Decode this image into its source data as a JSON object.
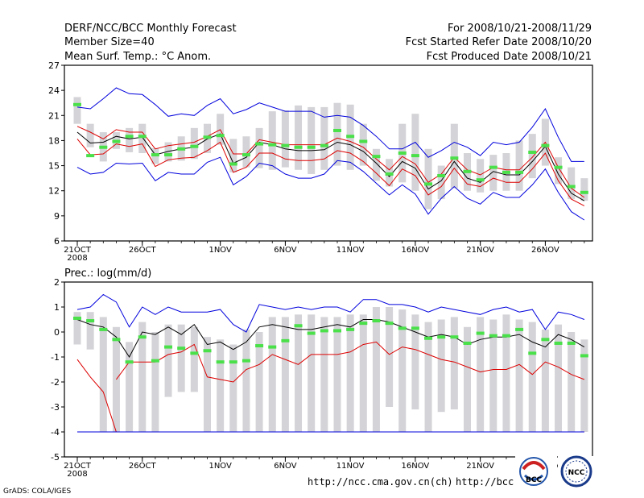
{
  "header": {
    "left_line1": "DERF/NCC/BCC Monthly Forecast",
    "left_line2": "Member Size=40",
    "left_line3": "Mean Surf. Temp.: °C Anom.",
    "right_line1": "For 2008/10/21-2008/11/29",
    "right_line2": "Fcst Started Refer Date 2008/10/20",
    "right_line3": "Fcst Produced Date 2008/10/21"
  },
  "footer": {
    "credit": "GrADS: COLA/IGES",
    "url1": "http://ncc.cma.gov.cn(ch)",
    "url2": "http://bcc.c",
    "logo_text_bcc": "BCC",
    "logo_text_ncc": "NCC"
  },
  "colors": {
    "max_line": "#0000dd",
    "min_line": "#dd0000",
    "mean_line": "#000000",
    "box": "#d4d4d8",
    "marker": "#4ae04a"
  },
  "chart_data": [
    {
      "type": "line",
      "title": "Mean Surf. Temp.: °C Anom.",
      "xlabel": "",
      "ylabel": "",
      "ylim": [
        6,
        27
      ],
      "yticks": [
        "6",
        "9",
        "12",
        "15",
        "18",
        "21",
        "24",
        "27"
      ],
      "xticks": [
        {
          "label": "21OCT",
          "day": 0
        },
        {
          "label": "26OCT",
          "day": 5
        },
        {
          "label": "1NOV",
          "day": 11
        },
        {
          "label": "6NOV",
          "day": 16
        },
        {
          "label": "11NOV",
          "day": 21
        },
        {
          "label": "16NOV",
          "day": 26
        },
        {
          "label": "21NOV",
          "day": 31
        },
        {
          "label": "26NOV",
          "day": 36
        }
      ],
      "year_label": "2008",
      "series": [
        {
          "name": "max",
          "color": "blue",
          "values": [
            22.0,
            21.8,
            23.0,
            24.3,
            23.6,
            23.5,
            22.3,
            20.9,
            21.2,
            21.0,
            22.2,
            23.0,
            21.2,
            21.7,
            22.5,
            22.0,
            21.5,
            21.5,
            21.5,
            20.8,
            21.0,
            20.8,
            19.8,
            18.5,
            17.0,
            17.0,
            17.8,
            16.0,
            16.8,
            17.8,
            17.2,
            16.2,
            17.8,
            17.5,
            17.8,
            19.6,
            21.8,
            18.4,
            15.5,
            15.5
          ]
        },
        {
          "name": "upper",
          "color": "red",
          "values": [
            19.7,
            19.0,
            18.2,
            19.3,
            19.0,
            19.0,
            17.0,
            17.4,
            17.6,
            17.8,
            18.5,
            19.3,
            16.4,
            16.4,
            18.1,
            17.8,
            17.5,
            17.5,
            17.5,
            17.5,
            18.3,
            17.9,
            17.2,
            15.8,
            14.5,
            16.1,
            15.2,
            13.0,
            14.0,
            16.0,
            14.5,
            13.9,
            14.8,
            14.5,
            14.5,
            16.0,
            17.8,
            14.8,
            12.3,
            11.2
          ]
        },
        {
          "name": "mean",
          "color": "black",
          "values": [
            19.0,
            17.7,
            17.8,
            18.5,
            18.2,
            18.4,
            16.3,
            16.7,
            17.0,
            17.2,
            18.2,
            18.8,
            15.3,
            16.0,
            17.8,
            17.5,
            17.0,
            16.8,
            16.8,
            16.9,
            17.8,
            17.5,
            16.7,
            15.3,
            13.7,
            15.5,
            14.7,
            12.2,
            13.2,
            15.5,
            13.5,
            13.0,
            14.3,
            13.9,
            13.9,
            15.5,
            17.3,
            14.0,
            11.7,
            10.8
          ]
        },
        {
          "name": "lower",
          "color": "red",
          "values": [
            18.2,
            16.3,
            16.4,
            17.6,
            17.3,
            17.6,
            14.9,
            15.7,
            15.9,
            16.0,
            16.8,
            17.8,
            14.2,
            14.8,
            16.5,
            16.5,
            15.8,
            15.6,
            15.6,
            15.8,
            16.8,
            16.5,
            15.5,
            14.1,
            12.6,
            14.6,
            13.8,
            11.5,
            12.5,
            14.7,
            12.8,
            12.5,
            13.5,
            13.0,
            13.0,
            14.6,
            16.5,
            13.2,
            11.0,
            10.2
          ]
        },
        {
          "name": "min",
          "color": "blue",
          "values": [
            14.8,
            14.0,
            14.2,
            15.3,
            15.2,
            15.3,
            13.2,
            14.2,
            14.0,
            14.0,
            15.4,
            16.0,
            12.7,
            13.7,
            15.3,
            15.0,
            14.0,
            13.5,
            13.5,
            14.0,
            15.6,
            15.4,
            14.3,
            12.9,
            11.5,
            12.7,
            11.6,
            9.2,
            11.1,
            12.5,
            11.1,
            10.4,
            11.8,
            11.2,
            11.2,
            12.7,
            14.6,
            11.8,
            9.5,
            8.5
          ]
        }
      ],
      "boxes": [
        [
          20.0,
          23.2
        ],
        [
          17.2,
          20.0
        ],
        [
          15.5,
          19.0
        ],
        [
          17.0,
          19.0
        ],
        [
          16.6,
          19.5
        ],
        [
          16.5,
          20.0
        ],
        [
          15.2,
          17.1
        ],
        [
          15.5,
          17.8
        ],
        [
          15.6,
          18.5
        ],
        [
          15.8,
          19.5
        ],
        [
          16.5,
          20.0
        ],
        [
          17.5,
          21.2
        ],
        [
          14.2,
          18.2
        ],
        [
          14.8,
          18.5
        ],
        [
          14.7,
          19.5
        ],
        [
          14.5,
          21.5
        ],
        [
          14.8,
          21.6
        ],
        [
          14.5,
          22.2
        ],
        [
          14.0,
          22.0
        ],
        [
          14.5,
          22.0
        ],
        [
          15.0,
          22.5
        ],
        [
          14.5,
          22.3
        ],
        [
          15.0,
          20.0
        ],
        [
          13.2,
          17.0
        ],
        [
          12.5,
          15.8
        ],
        [
          13.0,
          20.0
        ],
        [
          12.0,
          21.2
        ],
        [
          9.8,
          17.0
        ],
        [
          11.0,
          15.0
        ],
        [
          12.3,
          20.0
        ],
        [
          12.0,
          16.5
        ],
        [
          11.8,
          15.8
        ],
        [
          12.0,
          16.3
        ],
        [
          12.0,
          16.5
        ],
        [
          12.0,
          18.0
        ],
        [
          13.5,
          18.8
        ],
        [
          15.0,
          20.6
        ],
        [
          12.8,
          16.0
        ],
        [
          11.0,
          14.8
        ],
        [
          10.8,
          13.5
        ]
      ],
      "markers": [
        22.3,
        16.2,
        17.2,
        17.9,
        18.5,
        18.5,
        16.3,
        16.3,
        17.0,
        17.3,
        18.4,
        18.6,
        15.2,
        16.3,
        17.6,
        17.5,
        17.4,
        17.2,
        17.2,
        17.4,
        19.2,
        18.5,
        17.9,
        16.1,
        14.0,
        16.5,
        16.2,
        12.8,
        13.8,
        15.9,
        14.3,
        13.3,
        14.8,
        14.2,
        14.2,
        16.6,
        17.4,
        14.8,
        12.5,
        11.8
      ]
    },
    {
      "type": "line",
      "title": "Prec.: log(mm/d)",
      "xlabel": "",
      "ylabel": "",
      "ylim": [
        -5,
        2
      ],
      "yticks": [
        "-5",
        "-4",
        "-3",
        "-2",
        "-1",
        "0",
        "1",
        "2"
      ],
      "xticks": [
        {
          "label": "21OCT",
          "day": 0
        },
        {
          "label": "26OCT",
          "day": 5
        },
        {
          "label": "1NOV",
          "day": 11
        },
        {
          "label": "6NOV",
          "day": 16
        },
        {
          "label": "11NOV",
          "day": 21
        },
        {
          "label": "16NOV",
          "day": 26
        },
        {
          "label": "21NOV",
          "day": 31
        },
        {
          "label": "26NOV",
          "day": 36
        }
      ],
      "year_label": "2008",
      "series": [
        {
          "name": "max",
          "color": "blue",
          "values": [
            0.9,
            1.0,
            1.5,
            1.2,
            0.2,
            1.0,
            0.7,
            1.0,
            0.8,
            0.8,
            0.8,
            0.9,
            0.3,
            0.0,
            1.1,
            1.0,
            0.9,
            1.0,
            0.9,
            1.0,
            1.0,
            0.8,
            1.3,
            1.3,
            1.1,
            1.1,
            1.0,
            0.8,
            1.0,
            0.9,
            0.8,
            0.7,
            0.9,
            1.0,
            0.8,
            0.9,
            0.1,
            0.8,
            0.7,
            0.5
          ]
        },
        {
          "name": "mean",
          "color": "black",
          "values": [
            0.5,
            0.3,
            0.2,
            -0.2,
            -1.0,
            0.0,
            -0.1,
            0.2,
            -0.1,
            0.3,
            -0.5,
            -0.4,
            -0.7,
            -0.4,
            0.2,
            0.3,
            0.2,
            0.1,
            0.1,
            0.2,
            0.3,
            0.2,
            0.5,
            0.5,
            0.4,
            0.2,
            0.0,
            -0.2,
            -0.1,
            -0.2,
            -0.5,
            -0.3,
            -0.2,
            -0.2,
            -0.1,
            -0.4,
            -0.6,
            -0.1,
            -0.3,
            -0.6
          ]
        },
        {
          "name": "lower",
          "color": "red",
          "values": [
            -1.1,
            -1.8,
            -2.4,
            -4.0,
            -4.0,
            -4.0,
            -4.0,
            -4.0,
            -4.0,
            -4.0,
            -4.0,
            -4.0,
            -4.0,
            -4.0,
            -4.0,
            -4.0,
            -4.0,
            -4.0,
            -4.0,
            -4.0,
            -4.0,
            -4.0,
            -4.0,
            -4.0,
            -4.0,
            -4.0,
            -4.0,
            -4.0,
            -4.0,
            -4.0,
            -4.0,
            -4.0,
            -4.0,
            -4.0,
            -4.0,
            -4.0,
            -4.0,
            -4.0,
            -4.0,
            -4.0
          ]
        },
        {
          "name": "upper",
          "color": "red",
          "values": [
            null,
            null,
            null,
            -1.9,
            -1.2,
            -1.2,
            -1.2,
            -0.9,
            -0.8,
            -0.5,
            -1.8,
            -1.9,
            -2.0,
            -1.5,
            -1.3,
            -0.9,
            -1.1,
            -1.3,
            -0.9,
            -0.9,
            -0.9,
            -0.8,
            -0.5,
            -0.4,
            -0.9,
            -0.6,
            -0.7,
            -0.9,
            -1.1,
            -1.2,
            -1.4,
            -1.6,
            -1.5,
            -1.5,
            -1.3,
            -1.7,
            -1.2,
            -1.4,
            -1.7,
            -1.9
          ]
        },
        {
          "name": "floor",
          "color": "blue",
          "values": [
            -4.0,
            -4.0,
            -4.0,
            -4.0,
            -4.0,
            -4.0,
            -4.0,
            -4.0,
            -4.0,
            -4.0,
            -4.0,
            -4.0,
            -4.0,
            -4.0,
            -4.0,
            -4.0,
            -4.0,
            -4.0,
            -4.0,
            -4.0,
            -4.0,
            -4.0,
            -4.0,
            -4.0,
            -4.0,
            -4.0,
            -4.0,
            -4.0,
            -4.0,
            -4.0,
            -4.0,
            -4.0,
            -4.0,
            -4.0,
            -4.0,
            -4.0,
            -4.0,
            -4.0,
            -4.0,
            -4.0
          ]
        }
      ],
      "boxes": [
        [
          -0.5,
          0.8
        ],
        [
          -0.7,
          0.8
        ],
        [
          -4.0,
          0.6
        ],
        [
          -4.0,
          0.2
        ],
        [
          -4.0,
          -0.4
        ],
        [
          -4.0,
          0.4
        ],
        [
          -4.0,
          0.0
        ],
        [
          -2.6,
          0.3
        ],
        [
          -2.4,
          0.3
        ],
        [
          -2.4,
          0.2
        ],
        [
          -4.0,
          -0.2
        ],
        [
          -4.0,
          -0.3
        ],
        [
          -4.0,
          -0.5
        ],
        [
          -4.0,
          0.1
        ],
        [
          -4.0,
          0.0
        ],
        [
          -4.0,
          0.6
        ],
        [
          -4.0,
          0.6
        ],
        [
          -4.0,
          0.7
        ],
        [
          -4.0,
          0.7
        ],
        [
          -4.0,
          0.6
        ],
        [
          -4.0,
          0.6
        ],
        [
          -4.0,
          0.7
        ],
        [
          -4.0,
          0.7
        ],
        [
          -4.0,
          1.0
        ],
        [
          -3.0,
          1.0
        ],
        [
          -4.0,
          0.9
        ],
        [
          -3.1,
          0.7
        ],
        [
          -4.0,
          0.4
        ],
        [
          -3.2,
          0.5
        ],
        [
          -3.1,
          0.6
        ],
        [
          -4.0,
          0.2
        ],
        [
          -4.0,
          0.6
        ],
        [
          -4.0,
          0.5
        ],
        [
          -4.0,
          0.7
        ],
        [
          -4.0,
          0.5
        ],
        [
          -4.0,
          0.4
        ],
        [
          -4.0,
          0.1
        ],
        [
          -4.0,
          0.3
        ],
        [
          -4.0,
          0.0
        ],
        [
          -4.0,
          -0.3
        ]
      ],
      "markers": [
        0.55,
        0.45,
        0.1,
        -0.3,
        -1.2,
        -0.2,
        -1.15,
        -0.6,
        -0.65,
        -0.85,
        -0.75,
        -1.2,
        -1.2,
        -1.15,
        -0.55,
        -0.6,
        -0.35,
        0.25,
        -0.05,
        0.05,
        0.05,
        0.1,
        0.35,
        0.45,
        0.35,
        0.15,
        0.15,
        -0.25,
        -0.2,
        -0.2,
        -0.45,
        -0.05,
        -0.15,
        -0.15,
        0.1,
        -0.85,
        -0.3,
        -0.45,
        -0.45,
        -0.95
      ]
    }
  ]
}
